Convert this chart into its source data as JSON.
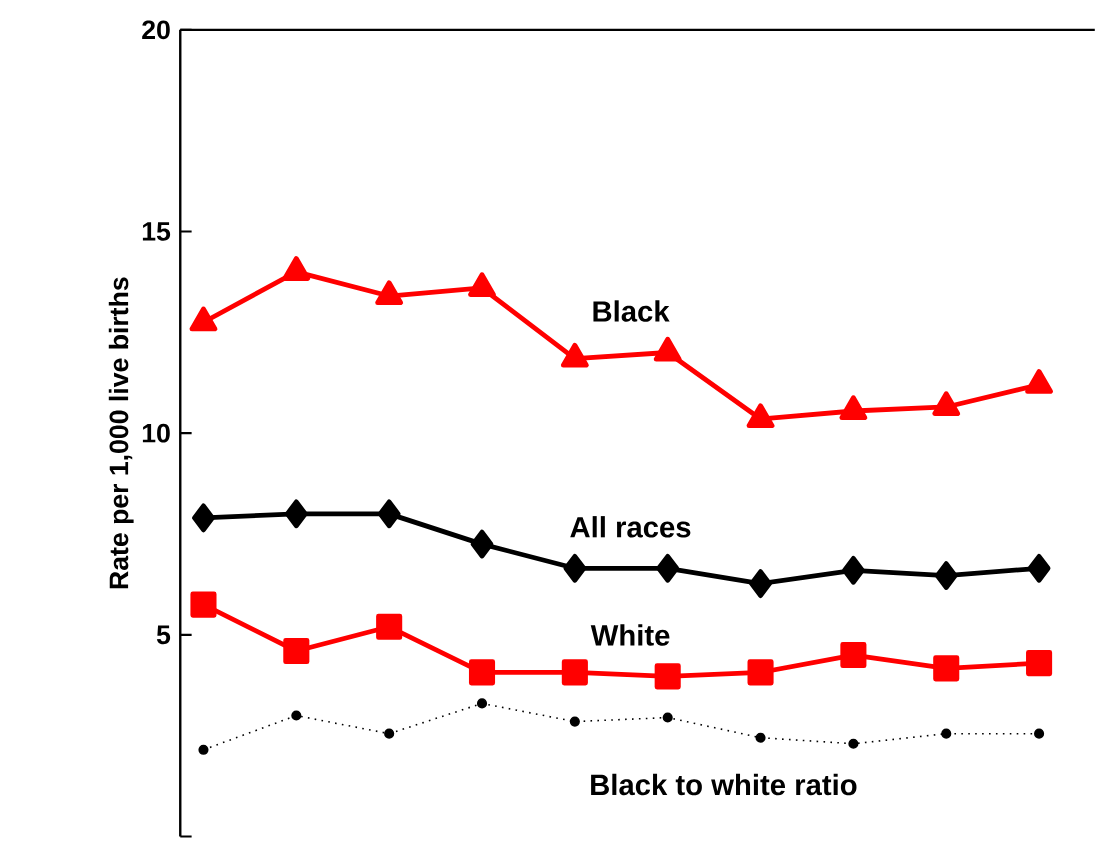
{
  "chart_data": {
    "type": "line",
    "ylabel": "Rate per 1,000 live births",
    "categories": [
      null,
      null,
      null,
      null,
      null,
      null,
      null,
      null,
      null,
      null
    ],
    "ylim": [
      0,
      20
    ],
    "yticks": [
      {
        "value": 0,
        "label": null
      },
      5,
      10,
      15,
      20
    ],
    "grid": false,
    "series": [
      {
        "name": "Black",
        "color": "#ff0000",
        "marker": "triangle",
        "line_style": "solid",
        "values": [
          12.75,
          14.0,
          13.4,
          13.6,
          11.85,
          12.0,
          10.35,
          10.55,
          10.65,
          11.2
        ]
      },
      {
        "name": "All races",
        "color": "#000000",
        "marker": "diamond",
        "line_style": "solid",
        "values": [
          7.9,
          8.0,
          8.0,
          7.25,
          6.65,
          6.65,
          6.27,
          6.6,
          6.47,
          6.65
        ]
      },
      {
        "name": "White",
        "color": "#ff0000",
        "marker": "square",
        "line_style": "solid",
        "values": [
          5.75,
          4.6,
          5.2,
          4.07,
          4.07,
          3.97,
          4.07,
          4.5,
          4.17,
          4.3
        ]
      },
      {
        "name": "Black to white ratio",
        "color": "#000000",
        "marker": "circle",
        "line_style": "dotted",
        "values": [
          2.15,
          3.0,
          2.55,
          3.3,
          2.85,
          2.95,
          2.45,
          2.3,
          2.55,
          2.55
        ]
      }
    ]
  }
}
